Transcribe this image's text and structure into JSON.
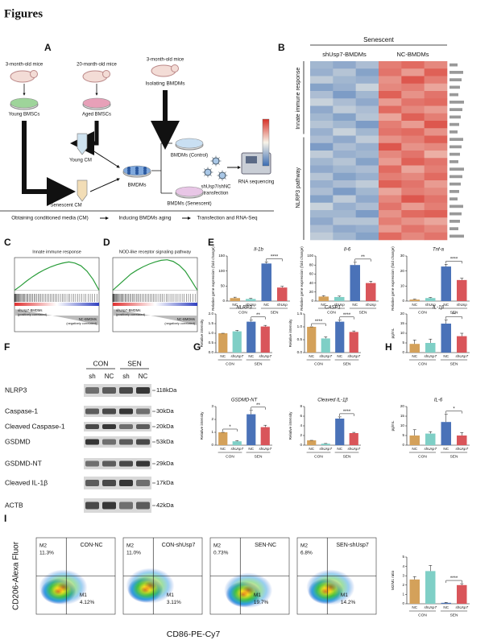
{
  "title": "Figures",
  "bar_colors": [
    "#d4a15a",
    "#7fcfc6",
    "#4a72b8",
    "#d9555a"
  ],
  "panel_a": {
    "label": "A",
    "young_mice": "3-month-old mice",
    "aged_mice": "20-month-old mice",
    "bmdm_mice": "3-month-old mice",
    "young_bmsc": "Young BMSCs",
    "aged_bmsc": "Aged BMSCs",
    "isolating": "Isolating BMDMs",
    "young_cm": "Young CM",
    "senescent_cm": "Senescent CM",
    "bmdms": "BMDMs",
    "bmdm_control": "BMDMs (Control)",
    "bmdm_senescent": "BMDMs (Senescent)",
    "transfection_lines": [
      "shUsp7/shNC",
      "transfection"
    ],
    "rna_seq": "RNA sequencing",
    "steps": [
      "Obtaining conditioned media (CM)",
      "Inducing BMDMs aging",
      "Transfection and RNA-Seq"
    ]
  },
  "panel_b": {
    "label": "B",
    "header": "Senescent",
    "groups": [
      "shUsp7-BMDMs",
      "NC-BMDMs"
    ],
    "sides": [
      "Innate immune response",
      "NLRP3 pathway"
    ],
    "heatmap": [
      [
        -0.9,
        -1.1,
        -0.8,
        1.2,
        1.4,
        1.1
      ],
      [
        -1.0,
        -0.7,
        -1.2,
        1.3,
        0.9,
        1.5
      ],
      [
        -0.6,
        -0.9,
        -1.0,
        1.0,
        1.6,
        1.2
      ],
      [
        -1.2,
        -1.0,
        -0.5,
        1.1,
        1.2,
        0.8
      ],
      [
        -0.8,
        -1.3,
        -0.9,
        1.5,
        1.0,
        1.3
      ],
      [
        -0.5,
        -0.8,
        -1.1,
        0.9,
        1.3,
        1.4
      ],
      [
        -1.1,
        -0.6,
        -0.8,
        1.4,
        1.1,
        0.9
      ],
      [
        -0.9,
        -1.2,
        -0.7,
        0.8,
        1.5,
        1.2
      ],
      [
        -0.7,
        -0.9,
        -1.3,
        1.2,
        0.9,
        1.6
      ],
      [
        -1.0,
        -0.5,
        -0.9,
        1.3,
        1.4,
        1.0
      ],
      [
        -0.8,
        -1.1,
        -0.6,
        1.0,
        1.2,
        1.5
      ],
      [
        -1.3,
        -0.8,
        -1.0,
        1.6,
        1.0,
        1.1
      ],
      [
        -0.6,
        -1.0,
        -0.9,
        1.1,
        1.3,
        0.7
      ],
      [
        -0.9,
        -0.7,
        -1.2,
        0.9,
        1.5,
        1.3
      ],
      [
        -1.1,
        -0.9,
        -0.8,
        1.4,
        0.8,
        1.2
      ],
      [
        -0.7,
        -1.2,
        -1.0,
        1.2,
        1.1,
        1.4
      ],
      [
        -1.0,
        -0.8,
        -0.6,
        1.5,
        1.3,
        0.9
      ],
      [
        -0.8,
        -1.3,
        -0.9,
        0.8,
        1.2,
        1.1
      ],
      [
        -1.2,
        -0.6,
        -1.1,
        1.1,
        1.6,
        1.3
      ],
      [
        -0.5,
        -1.0,
        -0.8,
        1.3,
        0.9,
        1.2
      ],
      [
        -0.9,
        -0.9,
        -1.3,
        1.0,
        1.4,
        1.5
      ],
      [
        -1.1,
        -0.7,
        -0.7,
        1.2,
        1.0,
        0.8
      ],
      [
        -0.8,
        -1.1,
        -1.0,
        0.9,
        1.3,
        1.1
      ],
      [
        -0.6,
        -0.9,
        -1.2,
        1.4,
        1.1,
        1.3
      ]
    ],
    "side_split": 10,
    "clim": [
      -2,
      2
    ]
  },
  "panel_c": {
    "label": "C",
    "title": "Innate immune response",
    "pos": "shUsp7-BMDMs",
    "pos_note": "(positively correlated)",
    "neg": "NC-BMDMs",
    "neg_note": "(negatively correlated)",
    "es": [
      0,
      0.08,
      0.17,
      0.25,
      0.32,
      0.38,
      0.43,
      0.47,
      0.5,
      0.52,
      0.5,
      0.45,
      0.35,
      0.2,
      0
    ],
    "ylim": [
      -0.05,
      0.6
    ]
  },
  "panel_d": {
    "label": "D",
    "title": "NOD-like receptor signaling pathway",
    "pos": "shUsp7-BMDMs",
    "pos_note": "(positively correlated)",
    "neg": "NC-BMDMs",
    "neg_note": "(negatively correlated)",
    "es": [
      0,
      0.1,
      0.2,
      0.3,
      0.37,
      0.43,
      0.48,
      0.52,
      0.55,
      0.56,
      0.53,
      0.46,
      0.35,
      0.18,
      0
    ],
    "ylim": [
      -0.05,
      0.6
    ]
  },
  "panel_e": {
    "label": "E",
    "charts": [
      {
        "type": "bar",
        "title": "Il-1b",
        "ylabel": "Relative gene expression (fold change)",
        "categories": [
          "NC",
          "shUsp",
          "NC",
          "shUsp"
        ],
        "groups": [
          "CON",
          "SEN"
        ],
        "values": [
          10,
          7,
          125,
          45
        ],
        "errors": [
          3,
          2,
          5,
          4
        ],
        "ylim": [
          0,
          150
        ],
        "yticks": [
          0,
          50,
          100,
          150
        ],
        "sig": [
          {
            "label": "****",
            "from": 2,
            "to": 3
          }
        ]
      },
      {
        "type": "bar",
        "title": "Il-6",
        "ylabel": "Relative gene expression (fold change)",
        "categories": [
          "NC",
          "shUsp",
          "NC",
          "shUsp"
        ],
        "groups": [
          "CON",
          "SEN"
        ],
        "values": [
          10,
          9,
          80,
          40
        ],
        "errors": [
          2,
          2,
          6,
          4
        ],
        "ylim": [
          0,
          100
        ],
        "yticks": [
          0,
          20,
          40,
          60,
          80,
          100
        ],
        "sig": [
          {
            "label": "**",
            "from": 2,
            "to": 3
          }
        ]
      },
      {
        "type": "bar",
        "title": "Tnf-a",
        "ylabel": "Relative gene expression (fold change)",
        "categories": [
          "NC",
          "shUsp",
          "NC",
          "shUsp"
        ],
        "groups": [
          "CON",
          "SEN"
        ],
        "values": [
          1,
          2,
          23,
          14
        ],
        "errors": [
          0.3,
          0.4,
          1.5,
          1.2
        ],
        "ylim": [
          0,
          30
        ],
        "yticks": [
          0,
          10,
          20,
          30
        ],
        "sig": [
          {
            "label": "****",
            "from": 2,
            "to": 3
          }
        ]
      }
    ]
  },
  "panel_f": {
    "label": "F",
    "groups": [
      "CON",
      "SEN"
    ],
    "lanes": [
      "sh",
      "NC",
      "sh",
      "NC"
    ],
    "proteins": [
      {
        "name": "NLRP3",
        "kda": "118kDa"
      },
      {
        "name": "Caspase-1",
        "kda": "30kDa"
      },
      {
        "name": "Cleaved Caspase-1",
        "kda": "20kDa"
      },
      {
        "name": "GSDMD",
        "kda": "53kDa"
      },
      {
        "name": "GSDMD-NT",
        "kda": "29kDa"
      },
      {
        "name": "Cleaved IL-1β",
        "kda": "17kDa"
      },
      {
        "name": "ACTB",
        "kda": "42kDa"
      }
    ]
  },
  "panel_g": {
    "label": "G",
    "charts": [
      {
        "type": "bar",
        "title": "NLRP3",
        "ylabel": "Relative intensity",
        "categories": [
          "NC",
          "shUsp7",
          "NC",
          "shUsp7"
        ],
        "groups": [
          "CON",
          "SEN"
        ],
        "values": [
          1.0,
          1.1,
          1.6,
          1.35
        ],
        "errors": [
          0,
          0.05,
          0.08,
          0.06
        ],
        "ylim": [
          0,
          2
        ],
        "yticks": [
          {
            "value": 0,
            "label": "0.0"
          },
          0.5,
          {
            "value": 1,
            "label": "1.0"
          },
          1.5,
          {
            "value": 2,
            "label": "2.0"
          }
        ],
        "sig": [
          {
            "label": "**",
            "from": 2,
            "to": 3
          }
        ]
      },
      {
        "type": "bar",
        "title": "CASP1",
        "ylabel": "Relative intensity",
        "categories": [
          "NC",
          "shUsp7",
          "NC",
          "shUsp7"
        ],
        "groups": [
          "CON",
          "SEN"
        ],
        "values": [
          1.0,
          0.55,
          1.2,
          0.8
        ],
        "errors": [
          0,
          0.06,
          0.06,
          0.04
        ],
        "ylim": [
          0,
          1.5
        ],
        "yticks": [
          {
            "value": 0,
            "label": "0.0"
          },
          0.5,
          {
            "value": 1,
            "label": "1.0"
          },
          1.5
        ],
        "sig": [
          {
            "label": "****",
            "from": 0,
            "to": 1
          },
          {
            "label": "****",
            "from": 2,
            "to": 3
          }
        ]
      },
      {
        "type": "bar",
        "title": "GSDMD-NT",
        "ylabel": "Relative intensity",
        "categories": [
          "NC",
          "shUsp7",
          "NC",
          "shUsp7"
        ],
        "groups": [
          "CON",
          "SEN"
        ],
        "values": [
          1.0,
          0.3,
          2.4,
          1.4
        ],
        "errors": [
          0,
          0.05,
          0.3,
          0.15
        ],
        "ylim": [
          0,
          3
        ],
        "yticks": [
          0,
          1,
          2,
          3
        ],
        "sig": [
          {
            "label": "*",
            "from": 0,
            "to": 1
          },
          {
            "label": "**",
            "from": 2,
            "to": 3
          }
        ]
      },
      {
        "type": "bar",
        "title": "Cleaved IL-1β",
        "ylabel": "Relative intensity",
        "categories": [
          "NC",
          "shUsp7",
          "NC",
          "shUsp7"
        ],
        "groups": [
          "CON",
          "SEN"
        ],
        "values": [
          1.0,
          0.3,
          5.5,
          2.5
        ],
        "errors": [
          0,
          0.05,
          0.35,
          0.15
        ],
        "ylim": [
          0,
          8
        ],
        "yticks": [
          0,
          2,
          4,
          6,
          8
        ],
        "sig": [
          {
            "label": "****",
            "from": 2,
            "to": 3
          }
        ]
      }
    ]
  },
  "panel_h": {
    "label": "H",
    "charts": [
      {
        "type": "bar",
        "title": "IL-1β",
        "ylabel": "pg/mL",
        "categories": [
          "NC",
          "shUsp7",
          "NC",
          "shUsp7"
        ],
        "groups": [
          "CON",
          "SEN"
        ],
        "values": [
          4.5,
          5,
          15,
          8.5
        ],
        "errors": [
          2,
          2,
          2,
          1.5
        ],
        "ylim": [
          0,
          20
        ],
        "yticks": [
          0,
          5,
          10,
          15,
          20
        ],
        "sig": [
          {
            "label": "**",
            "from": 2,
            "to": 3
          }
        ]
      },
      {
        "type": "bar",
        "title": "IL-6",
        "ylabel": "pg/mL",
        "categories": [
          "NC",
          "shUsp7",
          "NC",
          "shUsp7"
        ],
        "groups": [
          "CON",
          "SEN"
        ],
        "values": [
          5,
          6,
          12,
          5
        ],
        "errors": [
          3,
          1,
          4,
          1.5
        ],
        "ylim": [
          0,
          20
        ],
        "yticks": [
          0,
          5,
          10,
          15,
          20
        ],
        "sig": [
          {
            "label": "*",
            "from": 2,
            "to": 3
          }
        ]
      }
    ]
  },
  "panel_i": {
    "label": "I",
    "xlabel": "CD86-PE-Cy7",
    "ylabel": "CD206-Alexa Fluor",
    "gate_labels": [
      "M2",
      "M1"
    ],
    "plots": [
      {
        "title": "CON-NC",
        "m2": "11.3%",
        "m1": "4.12%"
      },
      {
        "title": "CON-shUsp7",
        "m2": "11.0%",
        "m1": "3.11%"
      },
      {
        "title": "SEN-NC",
        "m2": "0.73%",
        "m1": "19.7%"
      },
      {
        "title": "SEN-shUsp7",
        "m2": "6.8%",
        "m1": "14.2%"
      }
    ],
    "chart": {
      "type": "bar",
      "title": "",
      "ylabel": "M2/M1 ratio",
      "categories": [
        "NC",
        "shUsp7",
        "NC",
        "shUsp7"
      ],
      "groups": [
        "CON",
        "SEN"
      ],
      "values": [
        2.6,
        3.5,
        0.1,
        2.0
      ],
      "errors": [
        0.3,
        0.6,
        0.05,
        0.15
      ],
      "ylim": [
        0,
        5
      ],
      "yticks": [
        0,
        1,
        2,
        3,
        4,
        5
      ],
      "sig": [
        {
          "label": "****",
          "from": 2,
          "to": 3
        }
      ]
    }
  }
}
